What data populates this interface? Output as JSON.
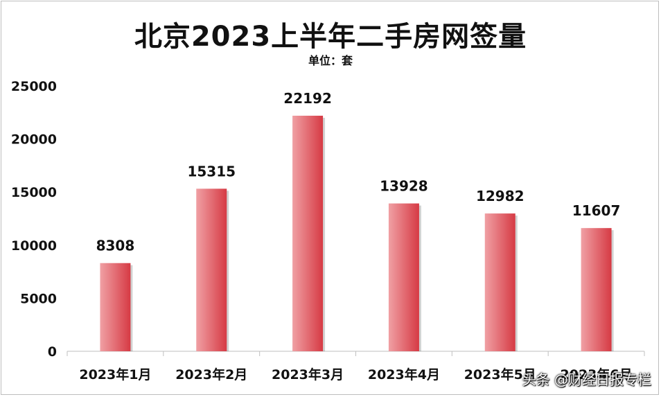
{
  "chart_data": {
    "type": "bar",
    "title": "北京2023上半年二手房网签量",
    "subtitle": "单位：套",
    "categories": [
      "2023年1月",
      "2023年2月",
      "2023年3月",
      "2023年4月",
      "2023年5月",
      "2023年6月"
    ],
    "values": [
      8308,
      15315,
      22192,
      13928,
      12982,
      11607
    ],
    "data_labels": [
      "8308",
      "15315",
      "22192",
      "13928",
      "12982",
      "11607"
    ],
    "ylim": [
      0,
      25000
    ],
    "y_ticks": [
      "0",
      "5000",
      "10000",
      "15000",
      "20000",
      "25000"
    ],
    "grid": false,
    "colors": {
      "bar_light": "#f0a0a4",
      "bar_dark": "#d63a44",
      "axis": "#bfbfbf"
    }
  },
  "watermark": "头条 @财经日报专栏"
}
